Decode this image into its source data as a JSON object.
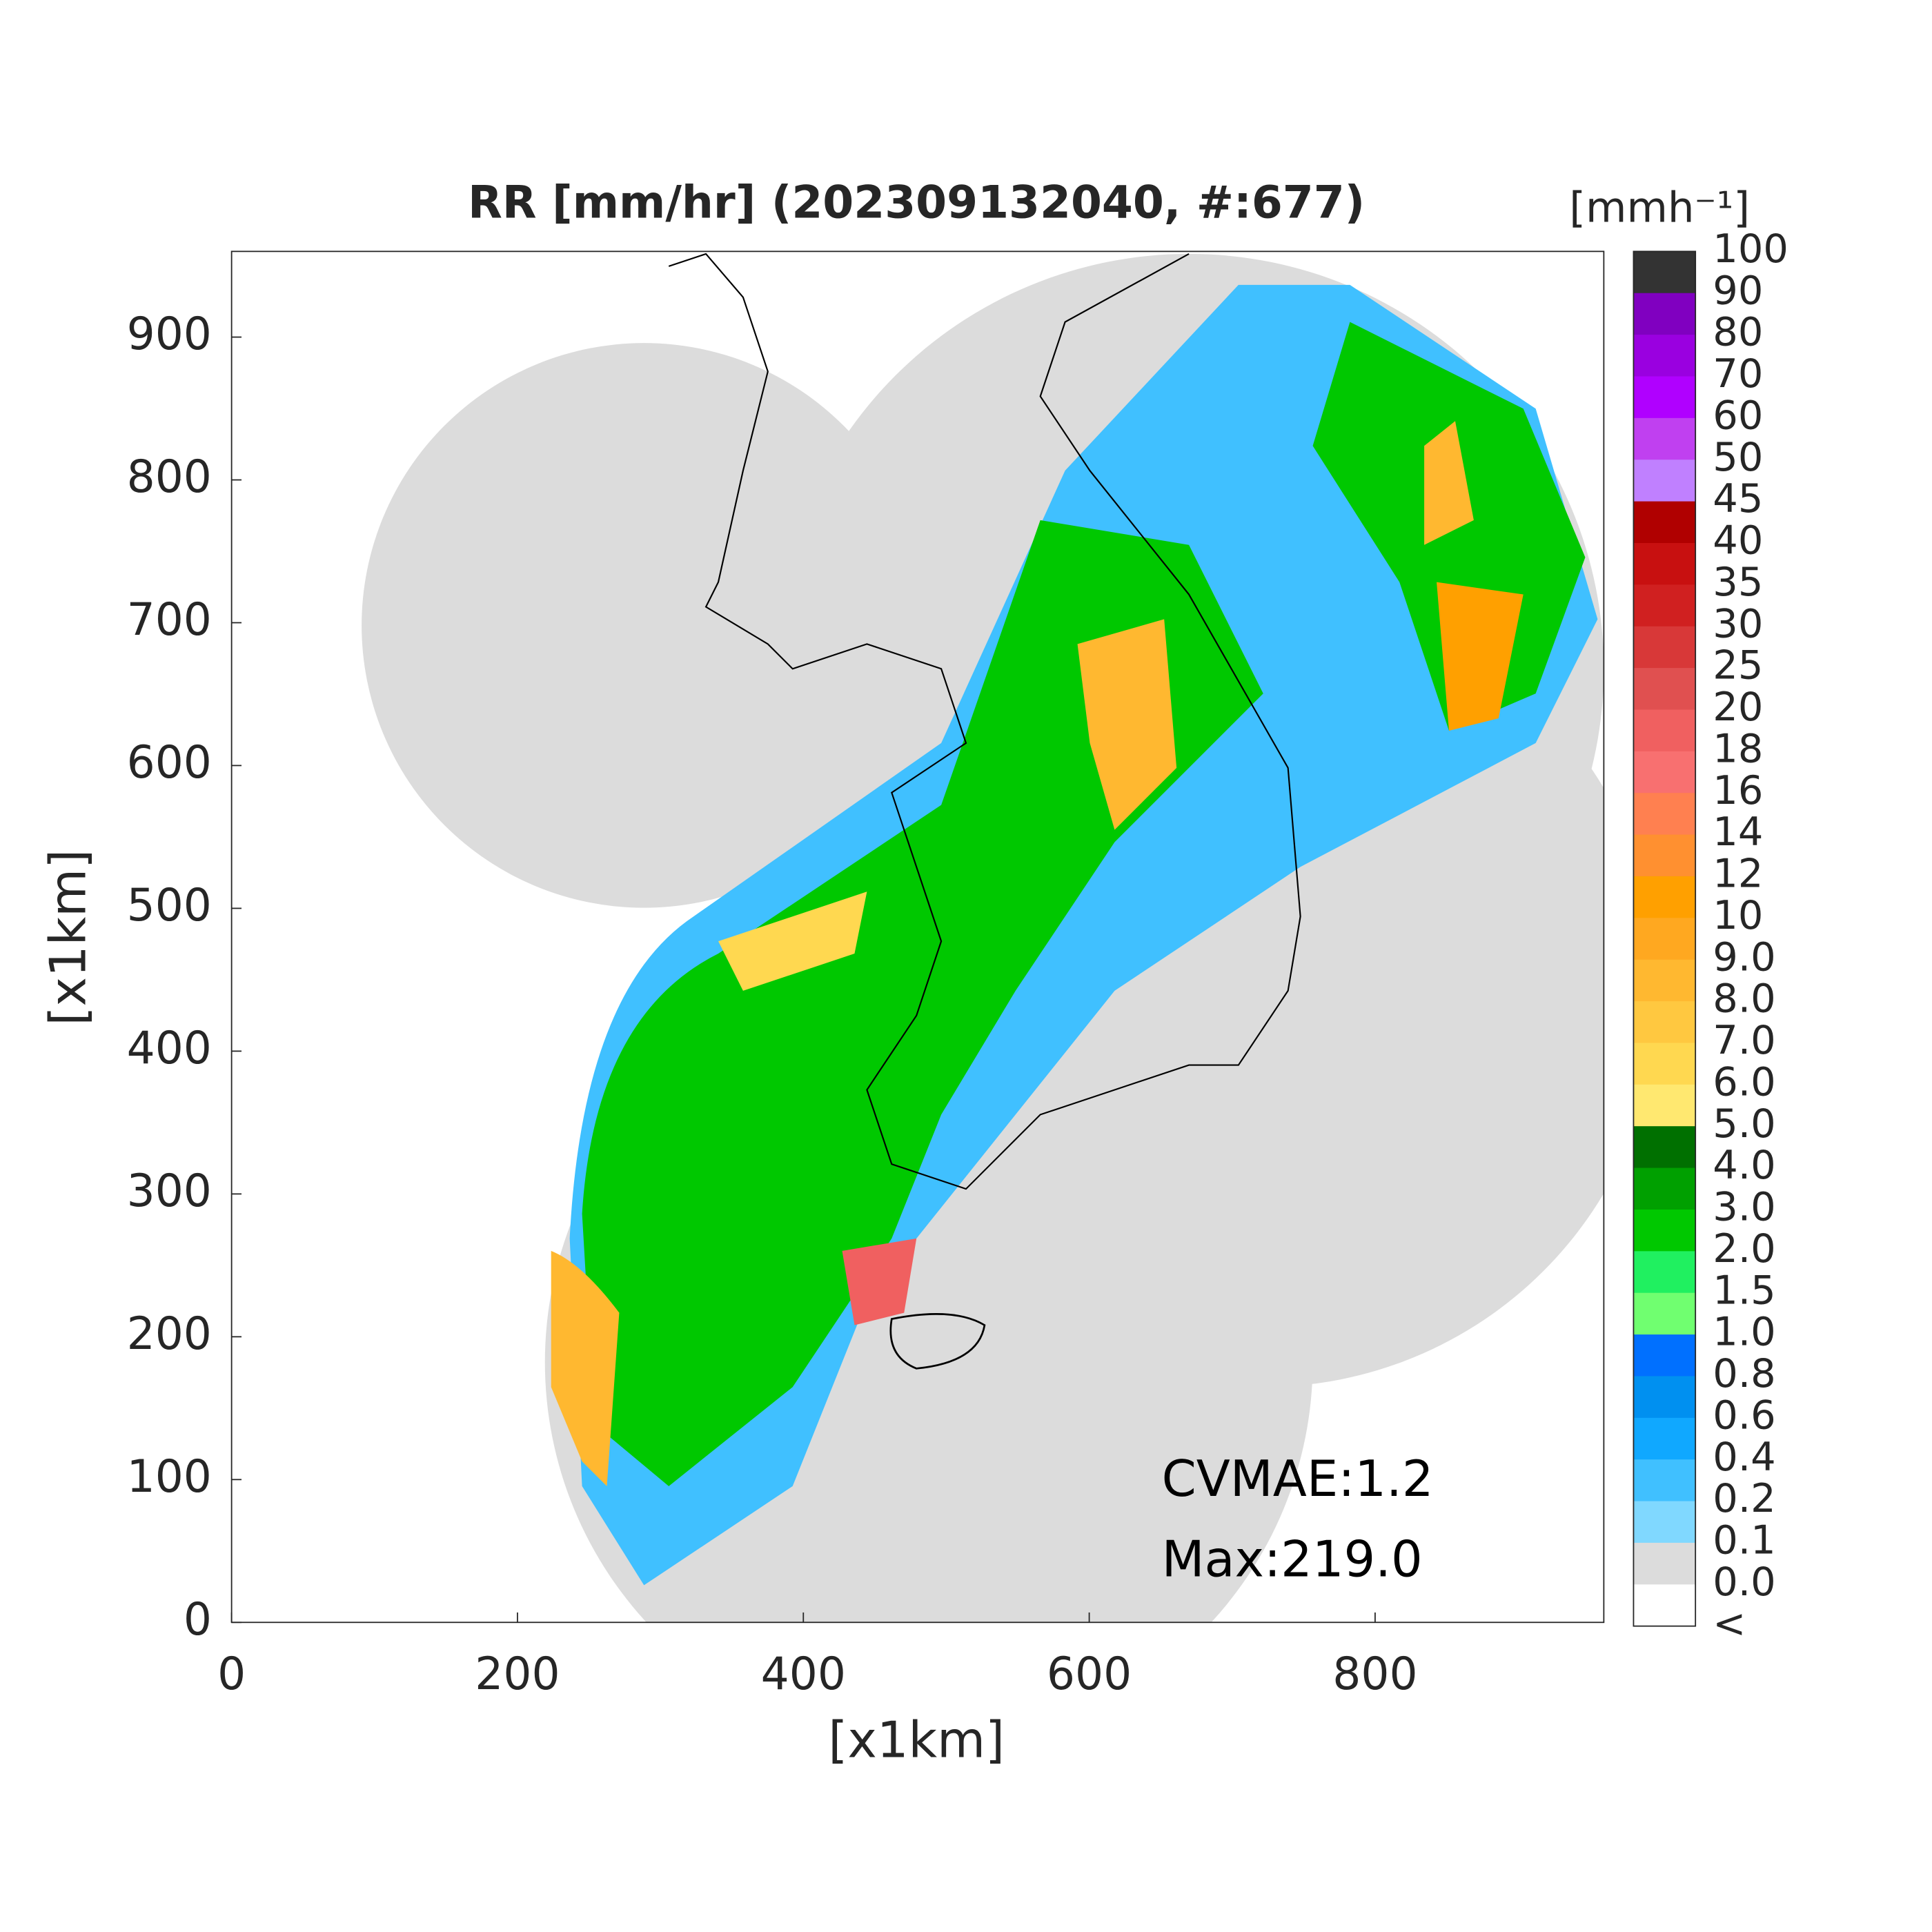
{
  "title": "RR [mm/hr] (202309132040, #:677)",
  "map": {
    "x_label": "[x1km]",
    "y_label": "[x1km]",
    "xlim": [
      0,
      960
    ],
    "ylim": [
      0,
      960
    ],
    "xticks": [
      0,
      200,
      400,
      600,
      800
    ],
    "yticks": [
      0,
      100,
      200,
      300,
      400,
      500,
      600,
      700,
      800,
      900
    ]
  },
  "colorbar": {
    "label": "[mmh⁻¹]",
    "levels": [
      "100",
      "90",
      "80",
      "70",
      "60",
      "50",
      "45",
      "40",
      "35",
      "30",
      "25",
      "20",
      "18",
      "16",
      "14",
      "12",
      "10",
      "9.0",
      "8.0",
      "7.0",
      "6.0",
      "5.0",
      "4.0",
      "3.0",
      "2.0",
      "1.5",
      "1.0",
      "0.8",
      "0.6",
      "0.4",
      "0.2",
      "0.1",
      "0.0",
      "<"
    ],
    "colors": [
      "#333333",
      "#8000c0",
      "#9a00e0",
      "#b000ff",
      "#c040f0",
      "#c080ff",
      "#b00000",
      "#c81010",
      "#d02020",
      "#d83838",
      "#e05050",
      "#f06060",
      "#f87070",
      "#ff8050",
      "#ff9030",
      "#ffa000",
      "#ffa820",
      "#ffb830",
      "#ffc840",
      "#ffd850",
      "#ffe870",
      "#007000",
      "#00a000",
      "#00c800",
      "#20f060",
      "#70ff70",
      "#0070ff",
      "#0090f0",
      "#10a8ff",
      "#40c0ff",
      "#80d8ff",
      "#dcdcdc",
      "#ffffff"
    ]
  },
  "annotations": [
    "CVMAE:1.2",
    "Max:219.0"
  ]
}
